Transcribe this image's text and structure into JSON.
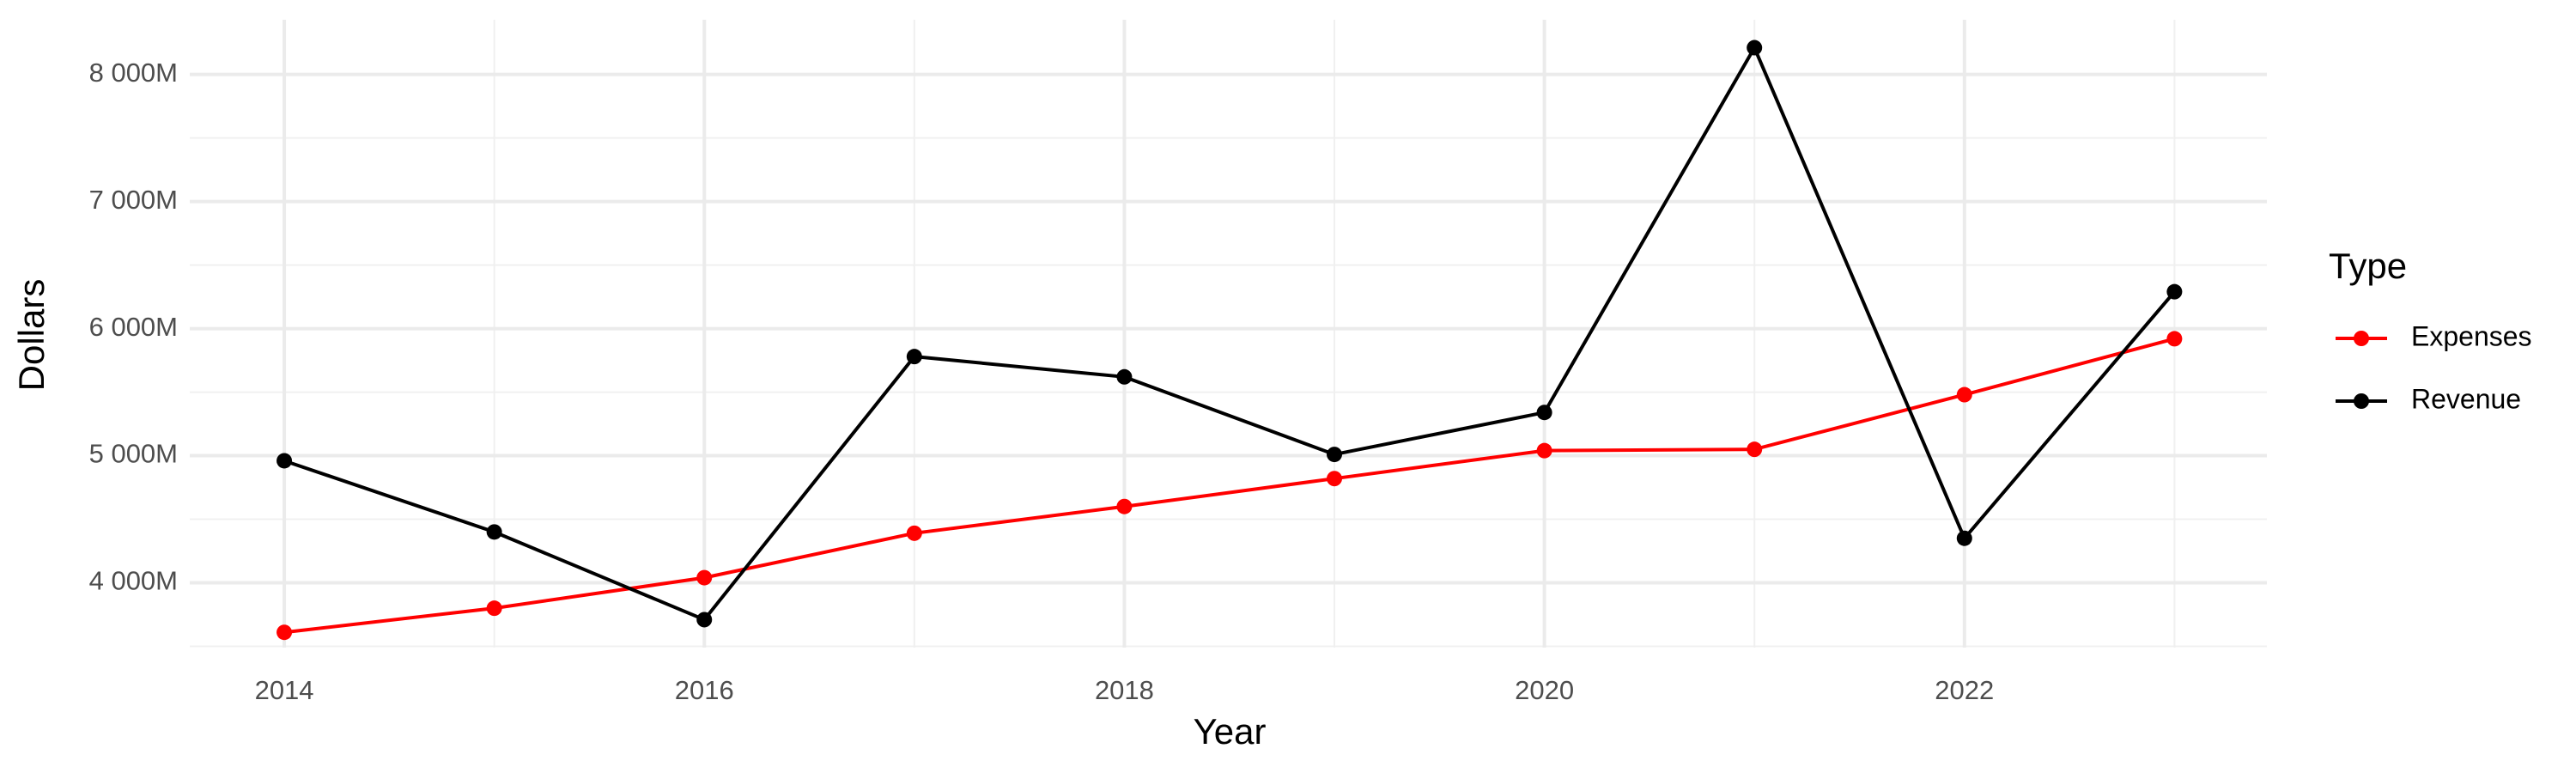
{
  "chart_data": {
    "type": "line",
    "x_label": "Year",
    "y_label": "Dollars",
    "legend_title": "Type",
    "x": [
      2014,
      2015,
      2016,
      2017,
      2018,
      2019,
      2020,
      2021,
      2022,
      2023
    ],
    "series": [
      {
        "name": "Expenses",
        "color": "#ff0000",
        "values": [
          3610,
          3800,
          4040,
          4390,
          4600,
          4820,
          5040,
          5050,
          5480,
          5920
        ]
      },
      {
        "name": "Revenue",
        "color": "#000000",
        "values": [
          4960,
          4400,
          3710,
          5780,
          5620,
          5010,
          5340,
          8210,
          4350,
          6290
        ]
      }
    ],
    "xlim": [
      2013.55,
      2023.44
    ],
    "xticks": [
      2014,
      2016,
      2018,
      2020,
      2022
    ],
    "ylim": [
      3490,
      8430
    ],
    "yticks": [
      {
        "value": 4000,
        "label": "4 000M"
      },
      {
        "value": 5000,
        "label": "5 000M"
      },
      {
        "value": 6000,
        "label": "6 000M"
      },
      {
        "value": 7000,
        "label": "7 000M"
      },
      {
        "value": 8000,
        "label": "8 000M"
      }
    ],
    "grid": true,
    "legend": "right"
  }
}
